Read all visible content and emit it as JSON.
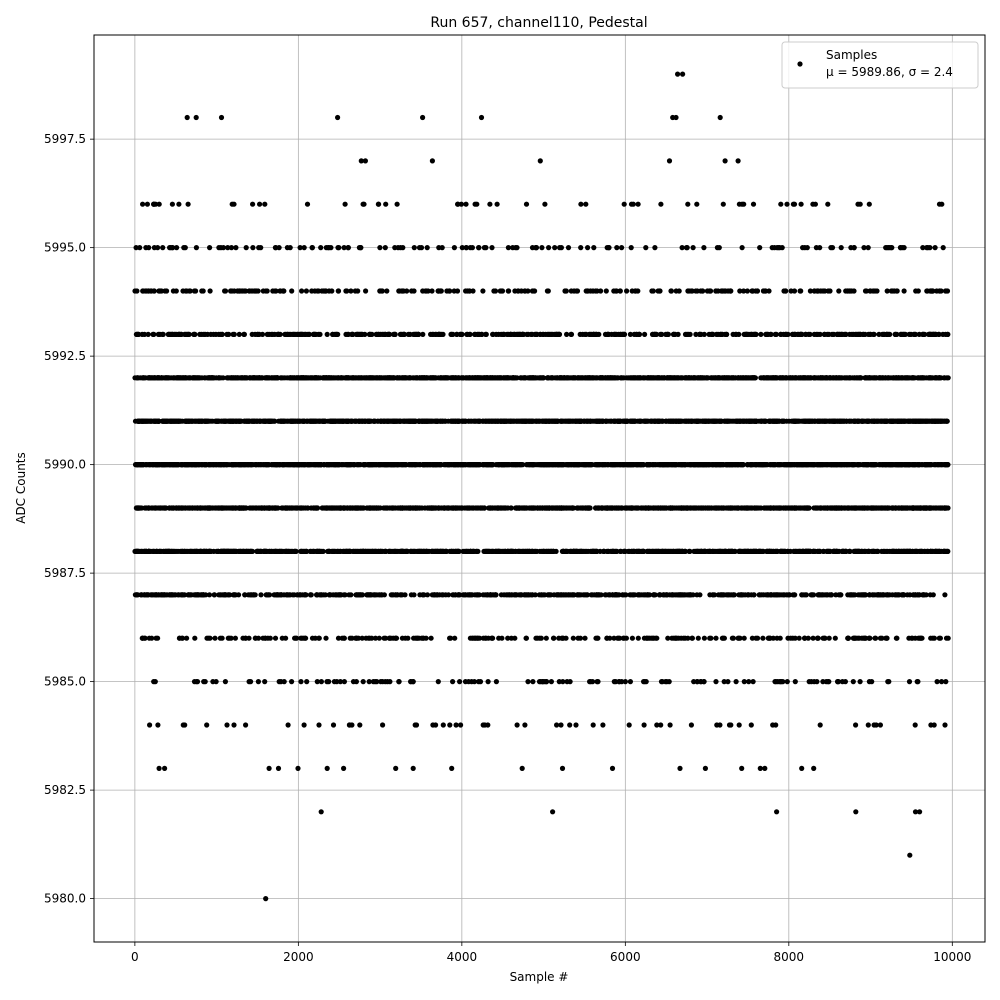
{
  "chart_data": {
    "type": "scatter",
    "title": "Run 657, channel110, Pedestal",
    "xlabel": "Sample #",
    "ylabel": "ADC Counts",
    "xlim": [
      -500,
      10400
    ],
    "ylim": [
      5979.0,
      5999.9
    ],
    "xticks": [
      0,
      2000,
      4000,
      6000,
      8000,
      10000
    ],
    "yticks": [
      5980.0,
      5982.5,
      5985.0,
      5987.5,
      5990.0,
      5992.5,
      5995.0,
      5997.5
    ],
    "xtick_labels": [
      "0",
      "2000",
      "4000",
      "6000",
      "8000",
      "10000"
    ],
    "ytick_labels": [
      "5980.0",
      "5982.5",
      "5985.0",
      "5987.5",
      "5990.0",
      "5992.5",
      "5995.0",
      "5997.5"
    ],
    "grid": true,
    "legend_position": "top-right",
    "marker_color": "#000000",
    "series": [
      {
        "name": "Samples",
        "stats_label": "μ = 5989.86, σ = 2.4",
        "levels": [
          5980,
          5981,
          5982,
          5983,
          5984,
          5985,
          5986,
          5987,
          5988,
          5989,
          5990,
          5991,
          5992,
          5993,
          5994,
          5995,
          5996,
          5997,
          5998,
          5999
        ],
        "x_range": [
          0,
          9950
        ],
        "approx_counts": [
          1,
          1,
          5,
          20,
          60,
          140,
          260,
          620,
          1000,
          1250,
          1400,
          1400,
          1250,
          480,
          270,
          140,
          60,
          12,
          8,
          2
        ],
        "isolated_points": [
          {
            "x": 1600,
            "y": 5980
          },
          {
            "x": 9480,
            "y": 5981
          },
          {
            "x": 2280,
            "y": 5982
          },
          {
            "x": 5110,
            "y": 5982
          },
          {
            "x": 7850,
            "y": 5982
          },
          {
            "x": 8820,
            "y": 5982
          },
          {
            "x": 9550,
            "y": 5982
          },
          {
            "x": 9600,
            "y": 5982
          },
          {
            "x": 6640,
            "y": 5999
          },
          {
            "x": 6700,
            "y": 5999
          },
          {
            "x": 640,
            "y": 5998
          },
          {
            "x": 750,
            "y": 5998
          },
          {
            "x": 1060,
            "y": 5998
          },
          {
            "x": 2480,
            "y": 5998
          },
          {
            "x": 3520,
            "y": 5998
          },
          {
            "x": 4240,
            "y": 5998
          },
          {
            "x": 6580,
            "y": 5998
          },
          {
            "x": 6620,
            "y": 5998
          },
          {
            "x": 7160,
            "y": 5998
          },
          {
            "x": 2770,
            "y": 5997
          },
          {
            "x": 2820,
            "y": 5997
          },
          {
            "x": 3640,
            "y": 5997
          },
          {
            "x": 4960,
            "y": 5997
          },
          {
            "x": 6540,
            "y": 5997
          },
          {
            "x": 7220,
            "y": 5997
          },
          {
            "x": 7380,
            "y": 5997
          }
        ]
      }
    ]
  }
}
